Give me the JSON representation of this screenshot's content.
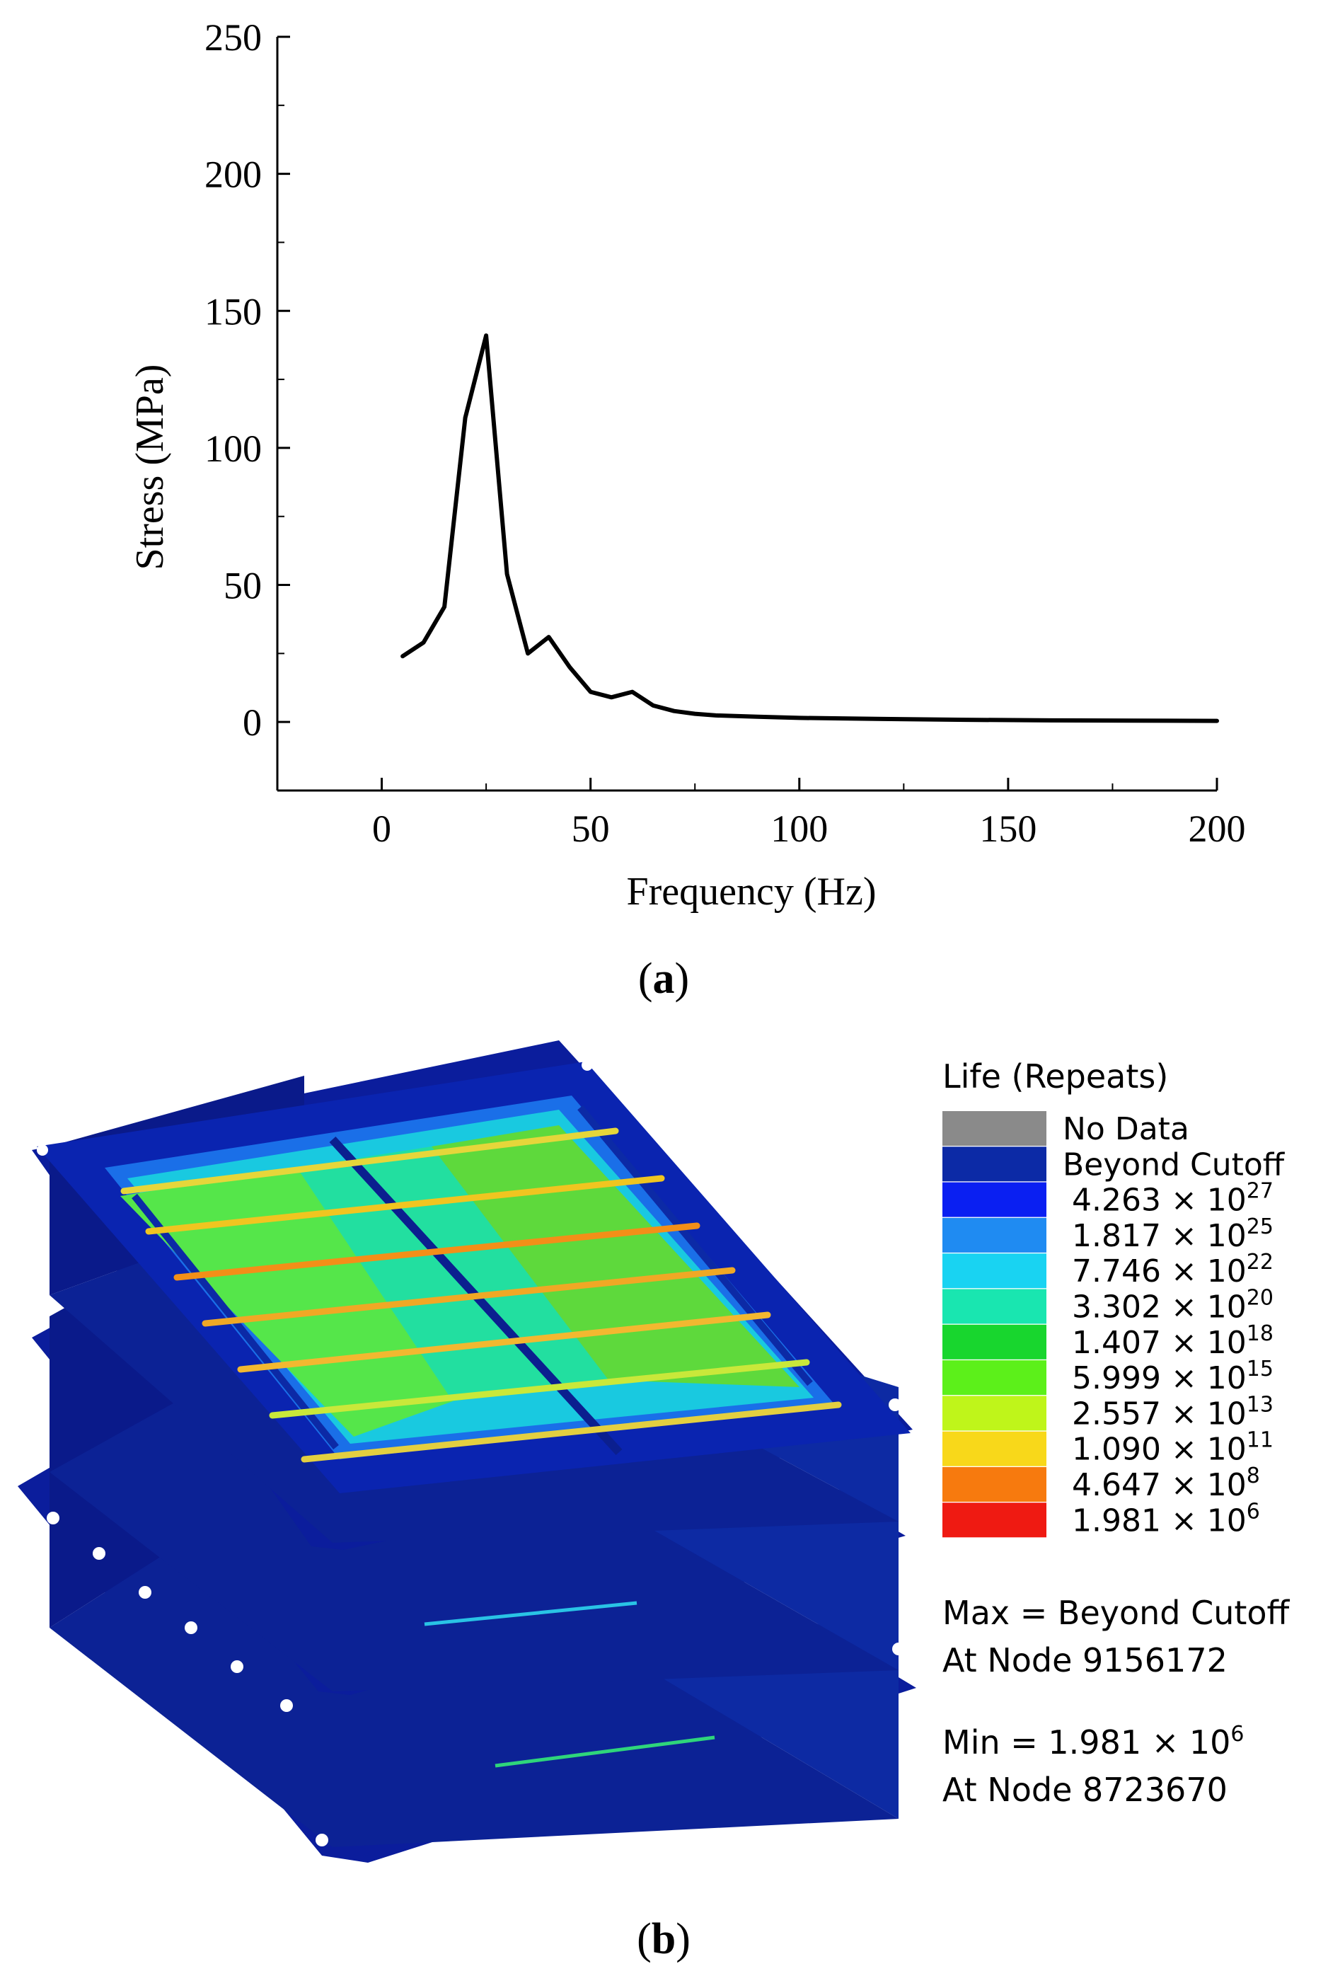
{
  "panel_a": {
    "caption": "a",
    "chart_data": {
      "type": "line",
      "title": "",
      "xlabel": "Frequency (Hz)",
      "ylabel": "Stress (MPa)",
      "xlim": [
        -25,
        200
      ],
      "ylim": [
        -25,
        250
      ],
      "xticks": [
        0,
        50,
        100,
        150,
        200
      ],
      "yticks": [
        0,
        50,
        100,
        150,
        200,
        250
      ],
      "xtick_labels": [
        "0",
        "50",
        "100",
        "150",
        "200"
      ],
      "ytick_labels": [
        "0",
        "50",
        "100",
        "150",
        "200",
        "250"
      ],
      "grid": false,
      "series": [
        {
          "name": "Stress",
          "color": "#000000",
          "x": [
            5,
            10,
            15,
            20,
            25,
            30,
            35,
            40,
            45,
            50,
            55,
            60,
            65,
            70,
            75,
            80,
            90,
            100,
            110,
            120,
            140,
            160,
            180,
            200
          ],
          "y": [
            24,
            29,
            42,
            111,
            141,
            54,
            25,
            31,
            20,
            11,
            9,
            11,
            6,
            4,
            3,
            2.4,
            1.9,
            1.5,
            1.3,
            1.1,
            0.8,
            0.6,
            0.5,
            0.4
          ]
        }
      ]
    }
  },
  "panel_b": {
    "caption": "b",
    "legend": {
      "title": "Life (Repeats)",
      "entries": [
        {
          "mantissa": "No Data",
          "exp": "",
          "color": "#8a8a8a"
        },
        {
          "mantissa": "Beyond Cutoff",
          "exp": "",
          "color": "#0c2aa6"
        },
        {
          "mantissa": "4.263 × 10",
          "exp": "27",
          "color": "#0a1ff2"
        },
        {
          "mantissa": "1.817 × 10",
          "exp": "25",
          "color": "#1f8bf2"
        },
        {
          "mantissa": "7.746 × 10",
          "exp": "22",
          "color": "#19d3f2"
        },
        {
          "mantissa": "3.302 × 10",
          "exp": "20",
          "color": "#19e6b0"
        },
        {
          "mantissa": "1.407 × 10",
          "exp": "18",
          "color": "#18d62e"
        },
        {
          "mantissa": "5.999 × 10",
          "exp": "15",
          "color": "#5cf01a"
        },
        {
          "mantissa": "2.557 × 10",
          "exp": "13",
          "color": "#bff51a"
        },
        {
          "mantissa": "1.090 × 10",
          "exp": "11",
          "color": "#f8d81a"
        },
        {
          "mantissa": "4.647 × 10",
          "exp": "8",
          "color": "#f77a0e"
        },
        {
          "mantissa": "1.981 × 10",
          "exp": "6",
          "color": "#ef1a12"
        }
      ],
      "max_label": "Max = Beyond Cutoff",
      "max_node": "At Node 9156172",
      "min_label": "Min = 1.981 × 10",
      "min_exp": "6",
      "min_node": "At Node 8723670"
    }
  }
}
